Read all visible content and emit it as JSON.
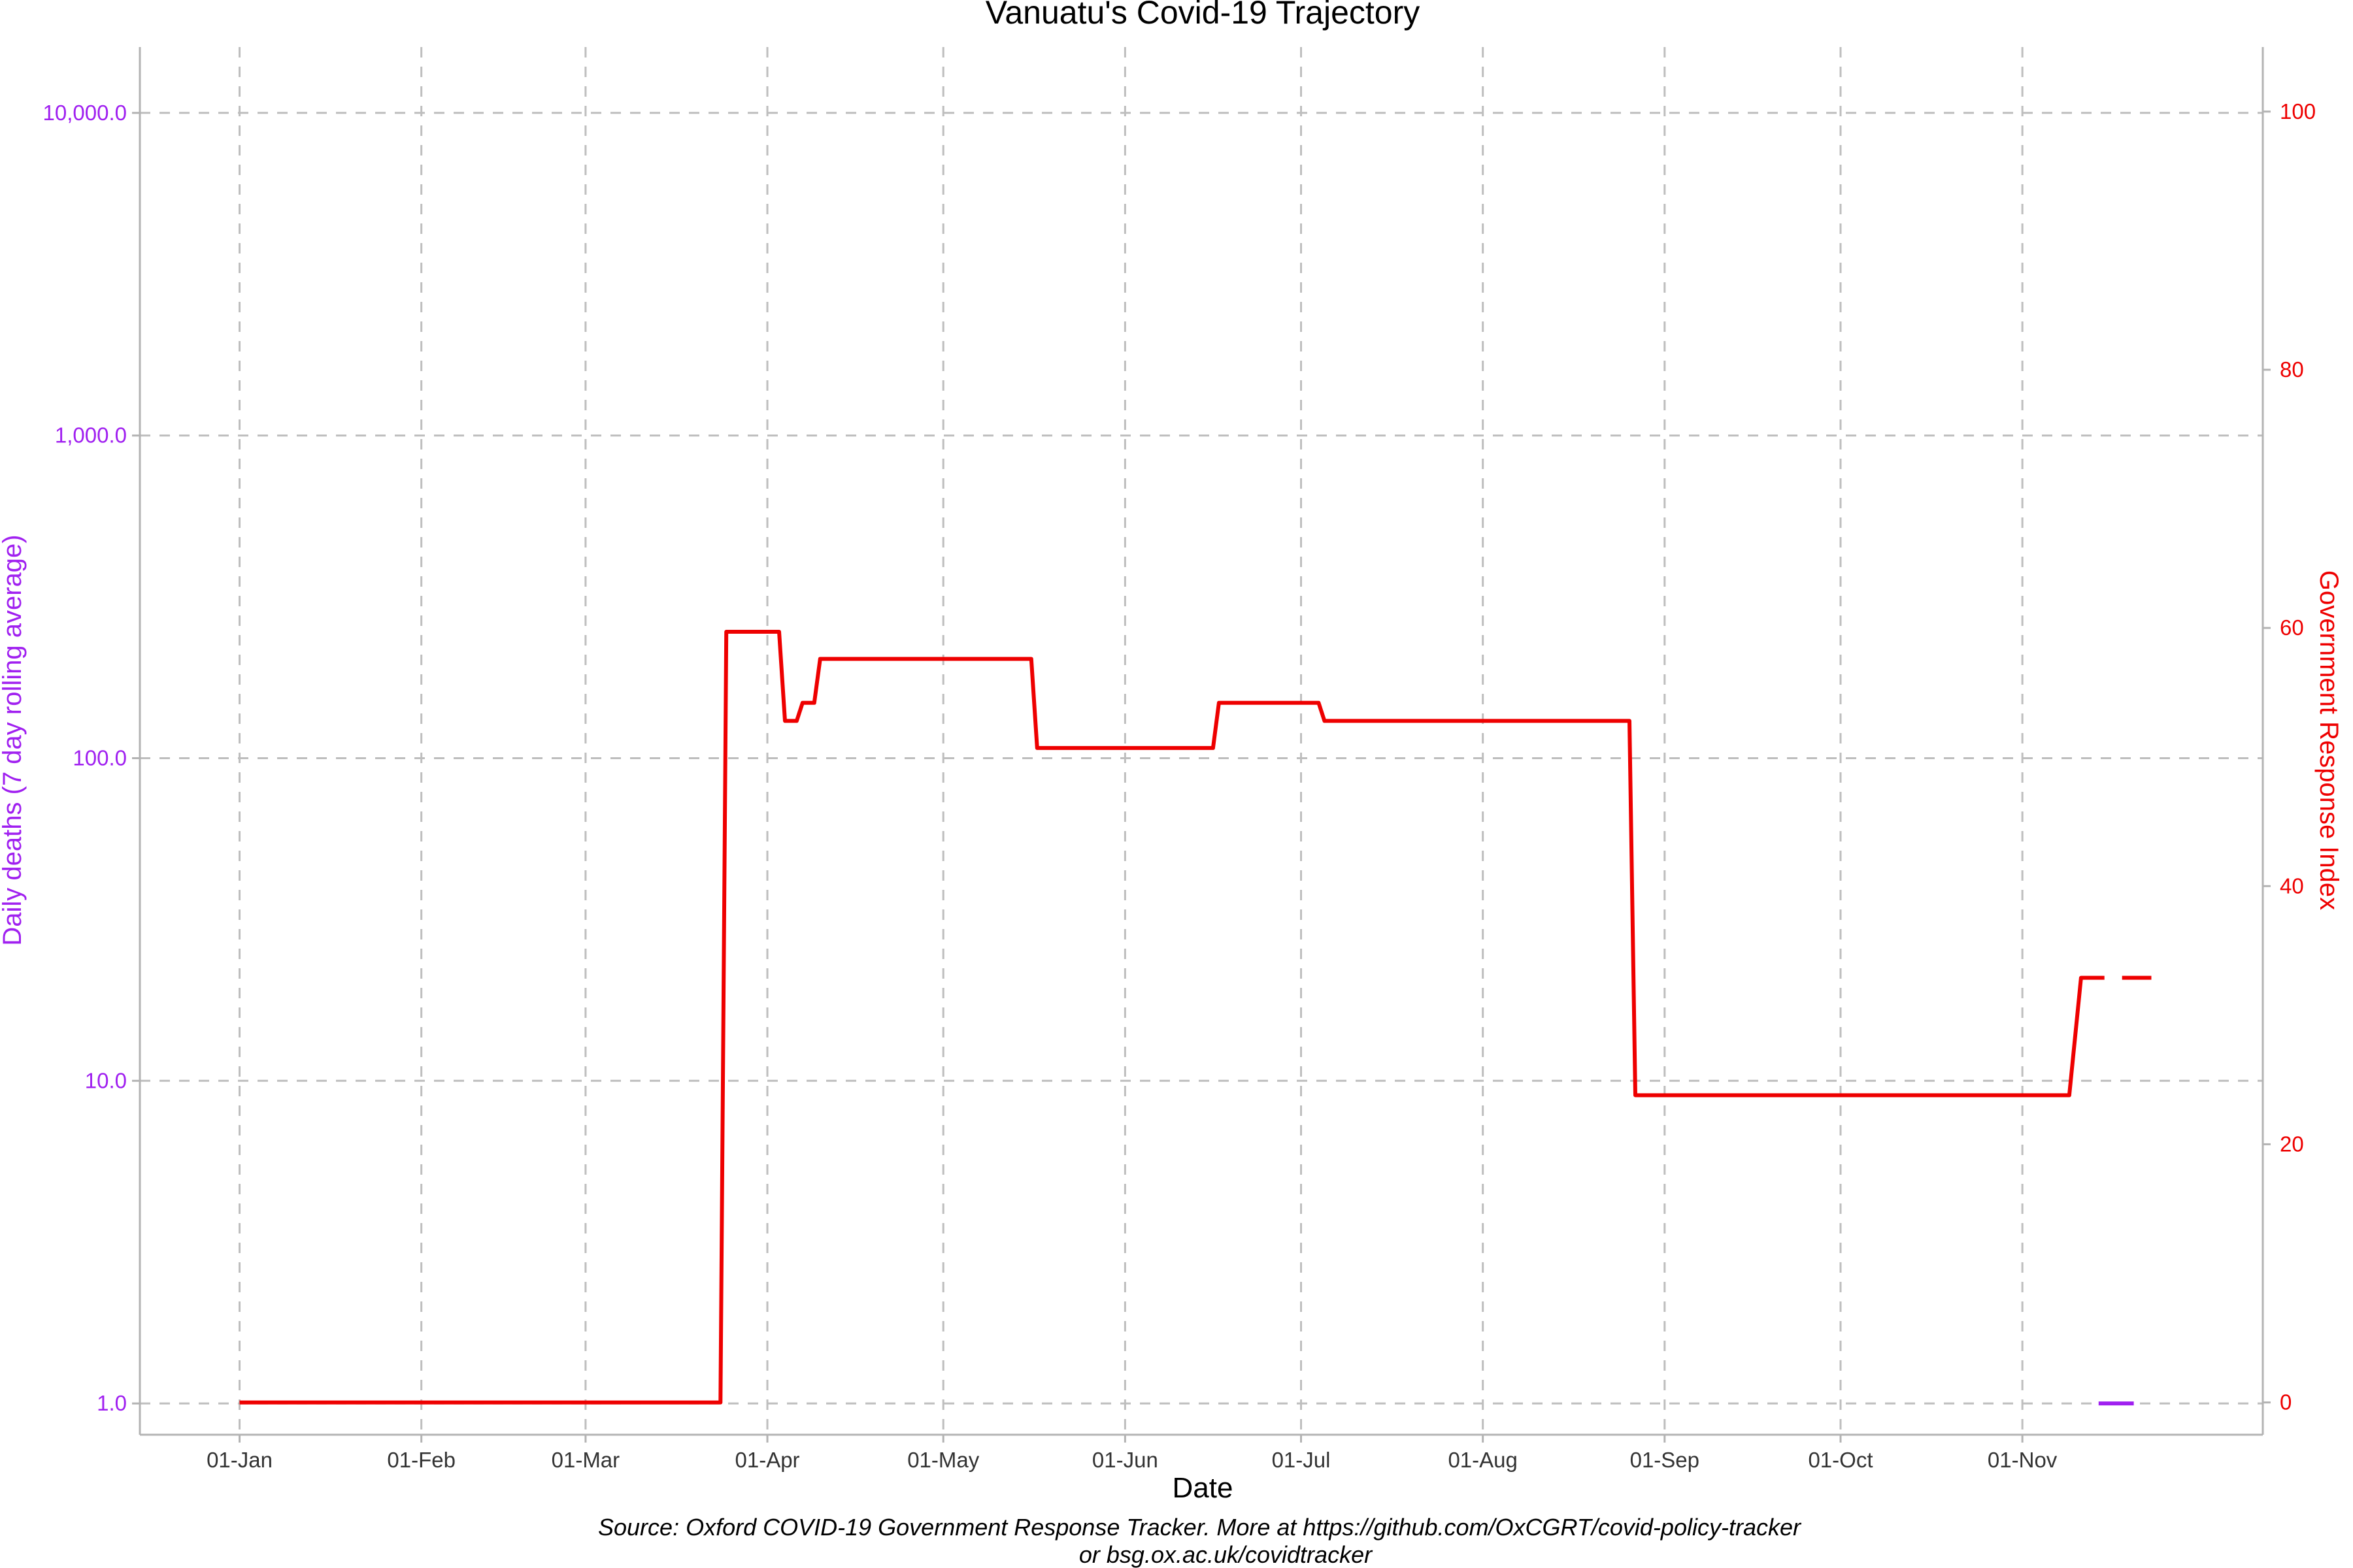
{
  "chart_data": {
    "type": "line",
    "title": "Vanuatu's Covid-19 Trajectory",
    "xlabel": "Date",
    "ylabel_left": "Daily deaths (7 day rolling average)",
    "ylabel_right": "Government Response Index",
    "caption_line1": "Source: Oxford COVID-19 Government Response Tracker. More at https://github.com/OxCGRT/covid-policy-tracker",
    "caption_line2": "or bsg.ox.ac.uk/covidtracker",
    "x_range": [
      "2020-12-15",
      "2021-12-12"
    ],
    "x_ticks": [
      {
        "date": "2021-01-01",
        "label": "01-Jan"
      },
      {
        "date": "2021-02-01",
        "label": "01-Feb"
      },
      {
        "date": "2021-03-01",
        "label": "01-Mar"
      },
      {
        "date": "2021-04-01",
        "label": "01-Apr"
      },
      {
        "date": "2021-05-01",
        "label": "01-May"
      },
      {
        "date": "2021-06-01",
        "label": "01-Jun"
      },
      {
        "date": "2021-07-01",
        "label": "01-Jul"
      },
      {
        "date": "2021-08-01",
        "label": "01-Aug"
      },
      {
        "date": "2021-09-01",
        "label": "01-Sep"
      },
      {
        "date": "2021-10-01",
        "label": "01-Oct"
      },
      {
        "date": "2021-11-01",
        "label": "01-Nov"
      }
    ],
    "y_left": {
      "scale": "log10",
      "range": [
        0.8,
        16000
      ],
      "ticks": [
        {
          "value": 1,
          "label": "1.0"
        },
        {
          "value": 10,
          "label": "10.0"
        },
        {
          "value": 100,
          "label": "100.0"
        },
        {
          "value": 1000,
          "label": "1,000.0"
        },
        {
          "value": 10000,
          "label": "10,000.0"
        }
      ]
    },
    "y_right": {
      "scale": "linear",
      "range": [
        -2.5,
        105
      ],
      "ticks": [
        {
          "value": 0,
          "label": "0"
        },
        {
          "value": 20,
          "label": "20"
        },
        {
          "value": 40,
          "label": "40"
        },
        {
          "value": 60,
          "label": "60"
        },
        {
          "value": 80,
          "label": "80"
        },
        {
          "value": 100,
          "label": "100"
        }
      ]
    },
    "grid": true,
    "grid_style": "dashed",
    "series": [
      {
        "color": "#EE0000",
        "axis": "right",
        "style": "step",
        "segments": [
          {
            "points": [
              [
                "2021-01-01",
                0
              ],
              [
                "2021-03-24",
                0
              ],
              [
                "2021-03-25",
                59.7
              ],
              [
                "2021-04-03",
                59.7
              ],
              [
                "2021-04-04",
                52.8
              ],
              [
                "2021-04-06",
                52.8
              ],
              [
                "2021-04-07",
                54.2
              ],
              [
                "2021-04-09",
                54.2
              ],
              [
                "2021-04-10",
                57.6
              ],
              [
                "2021-05-16",
                57.6
              ],
              [
                "2021-05-17",
                50.7
              ],
              [
                "2021-06-16",
                50.7
              ],
              [
                "2021-06-17",
                54.2
              ],
              [
                "2021-07-04",
                54.2
              ],
              [
                "2021-07-05",
                52.8
              ],
              [
                "2021-08-26",
                52.8
              ],
              [
                "2021-08-27",
                23.8
              ],
              [
                "2021-11-09",
                23.8
              ],
              [
                "2021-11-11",
                32.9
              ],
              [
                "2021-11-15",
                32.9
              ]
            ]
          },
          {
            "points": [
              [
                "2021-11-18",
                32.9
              ],
              [
                "2021-11-23",
                32.9
              ]
            ]
          }
        ]
      },
      {
        "color": "#A020F0",
        "axis": "left",
        "style": "line",
        "segments": [
          {
            "points": [
              [
                "2021-11-14",
                1.0
              ],
              [
                "2021-11-20",
                1.0
              ]
            ]
          }
        ]
      }
    ],
    "colors": {
      "left_axis": "#A020F0",
      "right_axis": "#EE0000",
      "grid": "#BEBEBE",
      "axis_line": "#B3B3B3"
    }
  }
}
